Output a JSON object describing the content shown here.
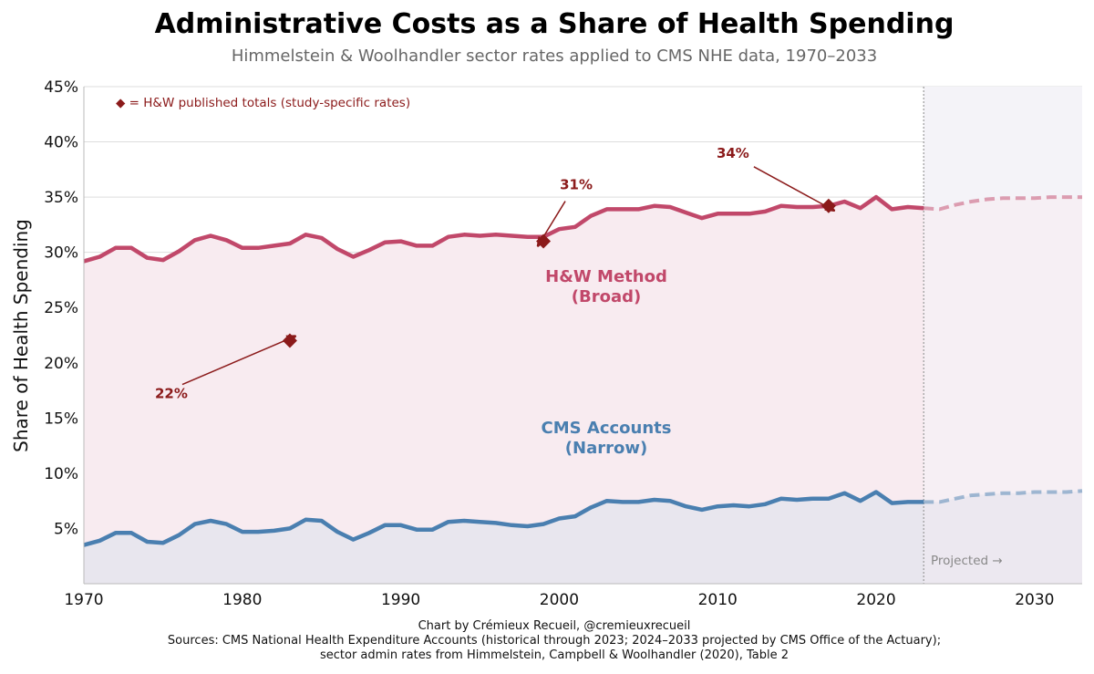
{
  "chart_data": {
    "type": "line",
    "title": "Administrative Costs as a Share of Health Spending",
    "subtitle": "Himmelstein & Woolhandler sector rates applied to CMS NHE data, 1970–2033",
    "ylabel": "Share of Health Spending",
    "xlabel": "",
    "xlim": [
      1970,
      2033
    ],
    "ylim": [
      0,
      45
    ],
    "x_ticks": [
      1970,
      1980,
      1990,
      2000,
      2010,
      2020,
      2030
    ],
    "x_tick_labels": [
      "1970",
      "1980",
      "1990",
      "2000",
      "2010",
      "2020",
      "2030"
    ],
    "y_ticks": [
      5,
      10,
      15,
      20,
      25,
      30,
      35,
      40,
      45
    ],
    "y_tick_labels": [
      "5%",
      "10%",
      "15%",
      "20%",
      "25%",
      "30%",
      "35%",
      "40%",
      "45%"
    ],
    "grid": true,
    "projection_start": 2023,
    "projected_label": "Projected →",
    "legend_note": "◆ = H&W published totals (study-specific rates)",
    "colors": {
      "broad": "#c1486a",
      "narrow": "#4a7fb0",
      "marker": "#8b1a1a",
      "broad_fill": "#f8ebf0",
      "narrow_fill": "#e8e6ee",
      "projected_fill": "#f4f3f8",
      "grid": "#dddddd"
    },
    "series": [
      {
        "name": "H&W Method (Broad)",
        "label_line1": "H&W Method",
        "label_line2": "(Broad)",
        "historical_x": [
          1970,
          1971,
          1972,
          1973,
          1974,
          1975,
          1976,
          1977,
          1978,
          1979,
          1980,
          1981,
          1982,
          1983,
          1984,
          1985,
          1986,
          1987,
          1988,
          1989,
          1990,
          1991,
          1992,
          1993,
          1994,
          1995,
          1996,
          1997,
          1998,
          1999,
          2000,
          2001,
          2002,
          2003,
          2004,
          2005,
          2006,
          2007,
          2008,
          2009,
          2010,
          2011,
          2012,
          2013,
          2014,
          2015,
          2016,
          2017,
          2018,
          2019,
          2020,
          2021,
          2022,
          2023
        ],
        "historical_y": [
          29.2,
          29.6,
          30.4,
          30.4,
          29.5,
          29.3,
          30.1,
          31.1,
          31.5,
          31.1,
          30.4,
          30.4,
          30.6,
          30.8,
          31.6,
          31.3,
          30.3,
          29.6,
          30.2,
          30.9,
          31.0,
          30.6,
          30.6,
          31.4,
          31.6,
          31.5,
          31.6,
          31.5,
          31.4,
          31.4,
          32.1,
          32.3,
          33.3,
          33.9,
          33.9,
          33.9,
          34.2,
          34.1,
          33.6,
          33.1,
          33.5,
          33.5,
          33.5,
          33.7,
          34.2,
          34.1,
          34.1,
          34.2,
          34.6,
          34.0,
          35.0,
          33.9,
          34.1,
          34.0
        ],
        "projected_x": [
          2023,
          2024,
          2025,
          2026,
          2027,
          2028,
          2029,
          2030,
          2031,
          2032,
          2033
        ],
        "projected_y": [
          34.0,
          33.9,
          34.3,
          34.6,
          34.8,
          34.9,
          34.9,
          34.9,
          35.0,
          35.0,
          35.0
        ]
      },
      {
        "name": "CMS Accounts (Narrow)",
        "label_line1": "CMS Accounts",
        "label_line2": "(Narrow)",
        "historical_x": [
          1970,
          1971,
          1972,
          1973,
          1974,
          1975,
          1976,
          1977,
          1978,
          1979,
          1980,
          1981,
          1982,
          1983,
          1984,
          1985,
          1986,
          1987,
          1988,
          1989,
          1990,
          1991,
          1992,
          1993,
          1994,
          1995,
          1996,
          1997,
          1998,
          1999,
          2000,
          2001,
          2002,
          2003,
          2004,
          2005,
          2006,
          2007,
          2008,
          2009,
          2010,
          2011,
          2012,
          2013,
          2014,
          2015,
          2016,
          2017,
          2018,
          2019,
          2020,
          2021,
          2022,
          2023
        ],
        "historical_y": [
          3.5,
          3.9,
          4.6,
          4.6,
          3.8,
          3.7,
          4.4,
          5.4,
          5.7,
          5.4,
          4.7,
          4.7,
          4.8,
          5.0,
          5.8,
          5.7,
          4.7,
          4.0,
          4.6,
          5.3,
          5.3,
          4.9,
          4.9,
          5.6,
          5.7,
          5.6,
          5.5,
          5.3,
          5.2,
          5.4,
          5.9,
          6.1,
          6.9,
          7.5,
          7.4,
          7.4,
          7.6,
          7.5,
          7.0,
          6.7,
          7.0,
          7.1,
          7.0,
          7.2,
          7.7,
          7.6,
          7.7,
          7.7,
          8.2,
          7.5,
          8.3,
          7.3,
          7.4,
          7.4
        ],
        "projected_x": [
          2023,
          2024,
          2025,
          2026,
          2027,
          2028,
          2029,
          2030,
          2031,
          2032,
          2033
        ],
        "projected_y": [
          7.4,
          7.4,
          7.7,
          8.0,
          8.1,
          8.2,
          8.2,
          8.3,
          8.3,
          8.3,
          8.4
        ]
      }
    ],
    "published_points": [
      {
        "x": 1983,
        "y": 22.0,
        "label": "22%"
      },
      {
        "x": 1999,
        "y": 31.0,
        "label": "31%"
      },
      {
        "x": 2017,
        "y": 34.2,
        "label": "34%"
      }
    ],
    "footer": {
      "line1": "Chart by Crémieux Recueil, @cremieuxrecueil",
      "line2": "Sources: CMS National Health Expenditure Accounts (historical through 2023; 2024–2033 projected by CMS Office of the Actuary);",
      "line3": "sector admin rates from Himmelstein, Campbell & Woolhandler (2020), Table 2"
    }
  }
}
